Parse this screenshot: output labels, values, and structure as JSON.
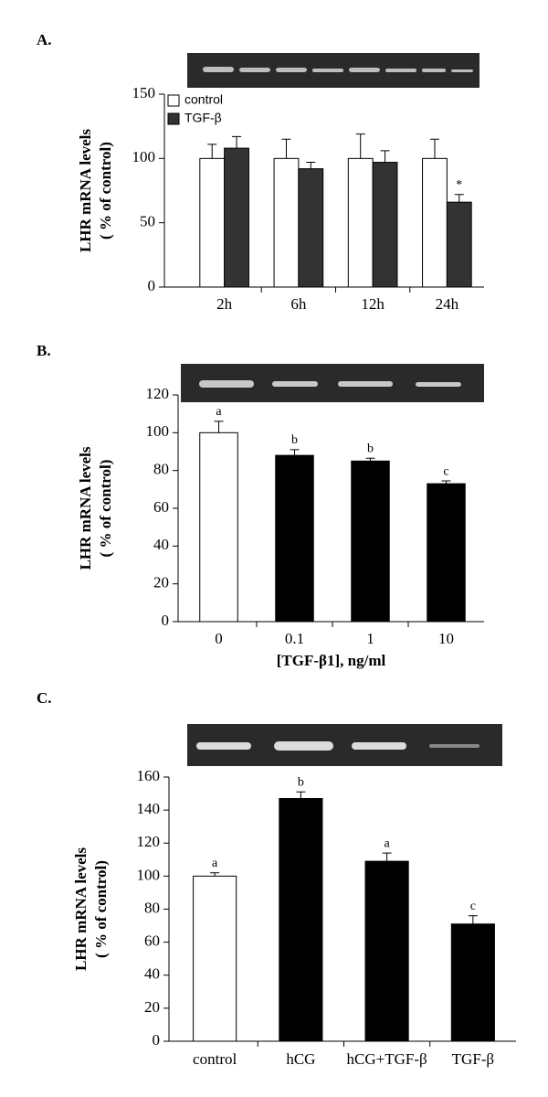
{
  "chart_data": [
    {
      "type": "bar",
      "panel": "A.",
      "ylabel": [
        "LHR  mRNA levels",
        "( % of control)"
      ],
      "categories": [
        "2h",
        "6h",
        "12h",
        "24h"
      ],
      "series": [
        {
          "name": "control",
          "color": "#ffffff",
          "values": [
            100,
            100,
            100,
            100
          ],
          "errors": [
            11,
            15,
            19,
            15
          ],
          "letters": [
            null,
            null,
            null,
            null
          ]
        },
        {
          "name": "TGF-β",
          "color": "#333333",
          "values": [
            108,
            92,
            97,
            66
          ],
          "errors": [
            9,
            5,
            9,
            6
          ],
          "letters": [
            null,
            null,
            null,
            "*"
          ]
        }
      ],
      "ylim": [
        0,
        150
      ],
      "yticks": [
        0,
        50,
        100,
        150
      ],
      "legend": "upper left"
    },
    {
      "type": "bar",
      "panel": "B.",
      "ylabel": [
        "LHR  mRNA levels",
        "( % of control)"
      ],
      "xlabel": "[TGF-β1], ng/ml",
      "categories": [
        "0",
        "0.1",
        "1",
        "10"
      ],
      "values": [
        100,
        88,
        85,
        73
      ],
      "errors": [
        6,
        3,
        1.5,
        1.5
      ],
      "letters": [
        "a",
        "b",
        "b",
        "c"
      ],
      "colors": [
        "#ffffff",
        "#000000",
        "#000000",
        "#000000"
      ],
      "ylim": [
        0,
        120
      ],
      "yticks": [
        0,
        20,
        40,
        60,
        80,
        100,
        120
      ]
    },
    {
      "type": "bar",
      "panel": "C.",
      "ylabel": [
        "LHR  mRNA levels",
        "( % of control)"
      ],
      "categories": [
        "control",
        "hCG",
        "hCG+TGF-β",
        "TGF-β"
      ],
      "values": [
        100,
        147,
        109,
        71
      ],
      "errors": [
        2,
        4,
        5,
        5
      ],
      "letters": [
        "a",
        "b",
        "a",
        "c"
      ],
      "colors": [
        "#ffffff",
        "#000000",
        "#000000",
        "#000000"
      ],
      "ylim": [
        0,
        160
      ],
      "yticks": [
        0,
        20,
        40,
        60,
        80,
        100,
        120,
        140,
        160
      ]
    }
  ]
}
